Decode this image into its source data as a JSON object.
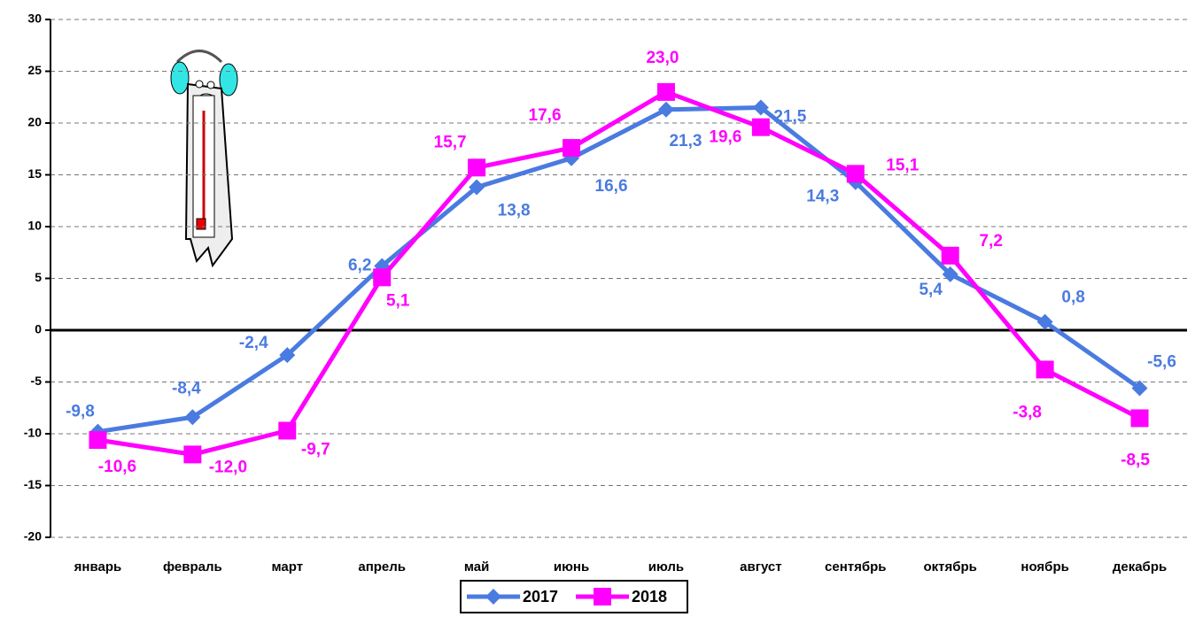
{
  "chart_data": {
    "type": "line",
    "categories": [
      "январь",
      "февраль",
      "март",
      "апрель",
      "май",
      "июнь",
      "июль",
      "август",
      "сентябрь",
      "октябрь",
      "ноябрь",
      "декабрь"
    ],
    "series": [
      {
        "name": "2017",
        "color": "#4a7be0",
        "values": [
          -9.8,
          -8.4,
          -2.4,
          6.2,
          13.8,
          16.6,
          21.3,
          21.5,
          14.3,
          5.4,
          0.8,
          -5.6
        ],
        "value_labels": [
          "-9,8",
          "-8,4",
          "-2,4",
          "6,2",
          "13,8",
          "16,6",
          "21,3",
          "21,5",
          "14,3",
          "5,4",
          "0,8",
          "-5,6"
        ]
      },
      {
        "name": "2018",
        "color": "#ff00ff",
        "values": [
          -10.6,
          -12.0,
          -9.7,
          5.1,
          15.7,
          17.6,
          23.0,
          19.6,
          15.1,
          7.2,
          -3.8,
          -8.5
        ],
        "value_labels": [
          "-10,6",
          "-12,0",
          "-9,7",
          "5,1",
          "15,7",
          "17,6",
          "23,0",
          "19,6",
          "15,1",
          "7,2",
          "-3,8",
          "-8,5"
        ]
      }
    ],
    "ylim": [
      -20,
      30
    ],
    "yticks": [
      -20,
      -15,
      -10,
      -5,
      0,
      5,
      10,
      15,
      20,
      25,
      30
    ],
    "grid": true,
    "legend": "bottom"
  }
}
